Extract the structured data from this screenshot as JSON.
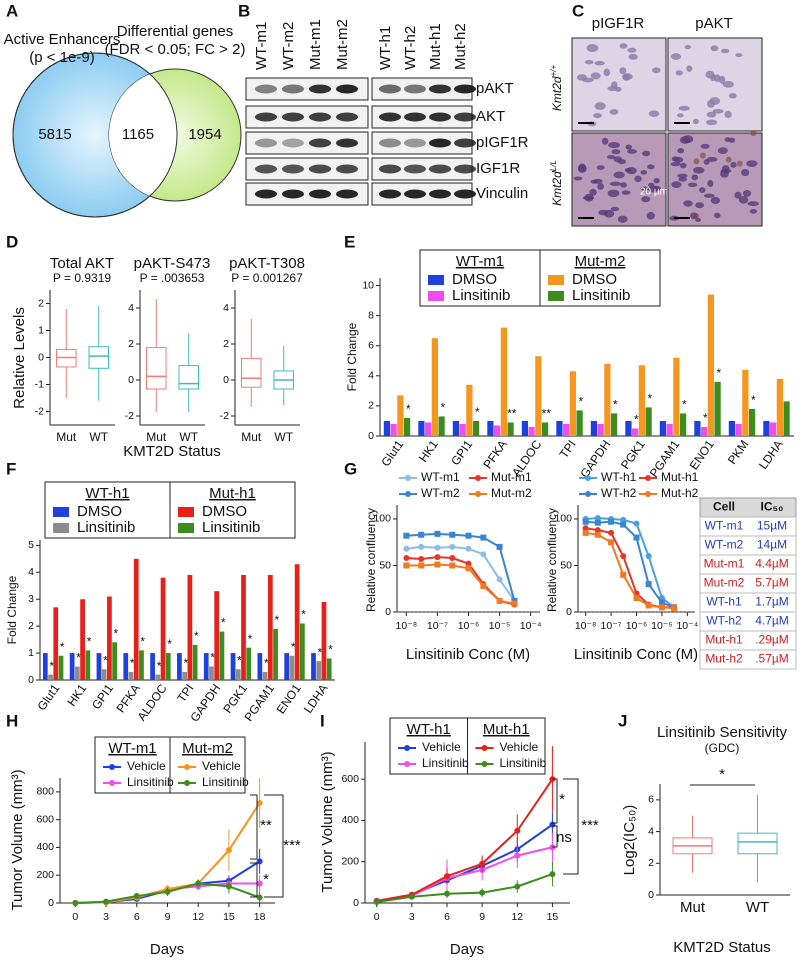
{
  "panel_letters": [
    "A",
    "B",
    "C",
    "D",
    "E",
    "F",
    "G",
    "H",
    "I",
    "J"
  ],
  "venn": {
    "left_title": "Active Enhancers",
    "left_subtitle": "(p < 1e-9)",
    "right_title": "Differential genes",
    "right_subtitle": "(FDR < 0.05; FC > 2)",
    "left_only": 5815,
    "overlap": 1165,
    "right_only": 1954
  },
  "blot": {
    "lanes": [
      "WT-m1",
      "WT-m2",
      "Mut-m1",
      "Mut-m2",
      "WT-h1",
      "WT-h2",
      "Mut-h1",
      "Mut-h2"
    ],
    "rows": [
      "pAKT",
      "AKT",
      "pIGF1R",
      "IGF1R",
      "Vinculin"
    ]
  },
  "ihc": {
    "columns": [
      "pIGF1R",
      "pAKT"
    ],
    "rows": [
      {
        "gene": "Kmt2d",
        "genotype": "+/+"
      },
      {
        "gene": "Kmt2d",
        "genotype": "L/L"
      }
    ],
    "scale_bar": "20 µm"
  },
  "chart_data": [
    {
      "type": "box",
      "title": "Total AKT",
      "subtitle": "P = 0.9319",
      "ylabel": "Relative Levels",
      "categories": [
        "Mut",
        "WT"
      ],
      "colors": [
        "#f07c7c",
        "#3fbcc0"
      ],
      "boxes": [
        {
          "whislo": -1.5,
          "q1": -0.35,
          "med": 0,
          "q3": 0.3,
          "whishi": 1.8
        },
        {
          "whislo": -1.6,
          "q1": -0.4,
          "med": 0.05,
          "q3": 0.4,
          "whishi": 1.9
        }
      ],
      "ylim": [
        -2.5,
        2.5
      ],
      "yticks": [
        -2,
        -1,
        0,
        1,
        2
      ]
    },
    {
      "type": "box",
      "title": "pAKT-S473",
      "subtitle": "P = .003653",
      "xlabel": "KMT2D Status",
      "categories": [
        "Mut",
        "WT"
      ],
      "colors": [
        "#f07c7c",
        "#3fbcc0"
      ],
      "boxes": [
        {
          "whislo": -1.8,
          "q1": -0.5,
          "med": 0.2,
          "q3": 1.8,
          "whishi": 4.5
        },
        {
          "whislo": -1.8,
          "q1": -0.5,
          "med": -0.2,
          "q3": 0.8,
          "whishi": 2.6
        }
      ],
      "ylim": [
        -2.5,
        5
      ],
      "yticks": [
        -2,
        0,
        2,
        4
      ]
    },
    {
      "type": "box",
      "title": "pAKT-T308",
      "subtitle": "P = 0.001267",
      "categories": [
        "Mut",
        "WT"
      ],
      "colors": [
        "#f07c7c",
        "#3fbcc0"
      ],
      "boxes": [
        {
          "whislo": -1.5,
          "q1": -0.4,
          "med": 0.1,
          "q3": 1.2,
          "whishi": 3.4
        },
        {
          "whislo": -1.4,
          "q1": -0.5,
          "med": 0,
          "q3": 0.5,
          "whishi": 1.9
        }
      ],
      "ylim": [
        -2.5,
        5
      ],
      "yticks": [
        -2,
        0,
        2,
        4
      ]
    },
    {
      "type": "bar",
      "ylabel": "Fold Change",
      "legend_groups": [
        "WT-m1",
        "Mut-m2"
      ],
      "categories": [
        "Glut1",
        "HK1",
        "GPI1",
        "PFKA",
        "ALDOC",
        "TPI",
        "GAPDH",
        "PGK1",
        "PGAM1",
        "ENO1",
        "PKM",
        "LDHA"
      ],
      "series": [
        {
          "name": "DMSO",
          "color": "#1f3fe0",
          "values": [
            1,
            1,
            1,
            1,
            1,
            1,
            1,
            1,
            1,
            1,
            1,
            1
          ]
        },
        {
          "name": "Linsitinib",
          "color": "#f04cf0",
          "values": [
            0.8,
            0.9,
            0.8,
            0.7,
            0.6,
            0.8,
            0.8,
            0.5,
            0.8,
            0.6,
            0.8,
            0.9
          ],
          "stars": [
            null,
            null,
            null,
            null,
            null,
            null,
            null,
            "*",
            null,
            "*",
            null,
            null
          ]
        },
        {
          "name": "DMSO",
          "color": "#f5961e",
          "values": [
            2.7,
            6.5,
            3.4,
            7.2,
            5.3,
            4.3,
            4.8,
            4.7,
            5.2,
            9.4,
            4.4,
            3.8
          ]
        },
        {
          "name": "Linsitinib",
          "color": "#3c8c1e",
          "values": [
            1.2,
            1.3,
            1.0,
            0.9,
            0.9,
            1.7,
            1.5,
            1.9,
            1.5,
            3.6,
            1.8,
            2.3
          ],
          "stars": [
            "*",
            "*",
            "*",
            "**",
            "**",
            "*",
            "*",
            "*",
            "*",
            "*",
            "*",
            null
          ]
        }
      ],
      "ylim": [
        0,
        10.5
      ],
      "yticks": [
        0,
        2,
        4,
        6,
        8,
        10
      ]
    },
    {
      "type": "bar",
      "ylabel": "Fold Change",
      "legend_groups": [
        "WT-h1",
        "Mut-h1"
      ],
      "categories": [
        "Glut1",
        "HK1",
        "GPI1",
        "PFKA",
        "ALDOC",
        "TPI",
        "GAPDH",
        "PGK1",
        "PGAM1",
        "ENO1",
        "LDHA"
      ],
      "series": [
        {
          "name": "DMSO",
          "color": "#1f3fe0",
          "values": [
            1,
            1,
            1,
            1,
            1,
            1,
            1,
            1,
            1,
            1,
            1
          ]
        },
        {
          "name": "Linsitinib",
          "color": "#8c8c8c",
          "values": [
            0.2,
            0.5,
            0.4,
            0.3,
            0.2,
            0.3,
            0.5,
            0.4,
            0.3,
            0.9,
            0.7
          ],
          "stars": [
            "*",
            "*",
            "*",
            "*",
            "*",
            "*",
            "*",
            "*",
            "*",
            "*",
            "*"
          ]
        },
        {
          "name": "DMSO",
          "color": "#e8201a",
          "values": [
            2.7,
            3.0,
            3.1,
            4.5,
            3.8,
            3.9,
            3.3,
            3.9,
            3.9,
            4.3,
            2.9
          ]
        },
        {
          "name": "Linsitinib",
          "color": "#3c8c1e",
          "values": [
            0.9,
            1.1,
            1.4,
            1.1,
            1.0,
            1.3,
            1.8,
            1.2,
            1.9,
            2.1,
            0.8
          ],
          "stars": [
            "*",
            "*",
            "*",
            "*",
            "*",
            "*",
            "*",
            "*",
            "*",
            "*",
            "*"
          ]
        }
      ],
      "ylim": [
        0,
        5.2
      ],
      "yticks": [
        0,
        1,
        2,
        3,
        4,
        5
      ]
    },
    {
      "type": "line",
      "xscale": "log",
      "ylabel": "Relative confluency",
      "xlabel": "Linsitinib Conc (M)",
      "zero_line": true,
      "x": [
        1e-08,
        3e-08,
        1e-07,
        3e-07,
        1e-06,
        3e-06,
        1e-05,
        3e-05
      ],
      "series": [
        {
          "name": "WT-m1",
          "color": "#8bbde8",
          "values": [
            68,
            70,
            69,
            70,
            68,
            62,
            35,
            12
          ]
        },
        {
          "name": "WT-m2",
          "color": "#3a84d0",
          "values": [
            82,
            83,
            84,
            83,
            82,
            80,
            70,
            12
          ]
        },
        {
          "name": "Mut-m1",
          "color": "#e8342a",
          "values": [
            58,
            57,
            59,
            58,
            52,
            30,
            12,
            8
          ]
        },
        {
          "name": "Mut-m2",
          "color": "#f07a20",
          "values": [
            50,
            50,
            51,
            50,
            47,
            28,
            12,
            9
          ]
        }
      ],
      "xlim": [
        5e-09,
        0.0002
      ],
      "xticks": [
        {
          "value": 1e-08,
          "label": "10⁻⁸"
        },
        {
          "value": 1e-07,
          "label": "10⁻⁷"
        },
        {
          "value": 1e-06,
          "label": "10⁻⁶"
        },
        {
          "value": 1e-05,
          "label": "10⁻⁵"
        },
        {
          "value": 0.0001,
          "label": "10⁻⁴"
        }
      ],
      "ylim": [
        0,
        115
      ],
      "yticks": [
        0,
        50,
        100
      ]
    },
    {
      "type": "line",
      "xscale": "log",
      "ylabel": "Relative confluency",
      "xlabel": "Linsitinib Conc (M)",
      "zero_line": true,
      "x": [
        1e-08,
        3e-08,
        1e-07,
        3e-07,
        1e-06,
        3e-06,
        1e-05,
        3e-05
      ],
      "series": [
        {
          "name": "WT-h1",
          "color": "#4aa0e0",
          "values": [
            100,
            101,
            100,
            99,
            95,
            60,
            15,
            5
          ]
        },
        {
          "name": "WT-h2",
          "color": "#3a84d0",
          "values": [
            97,
            96,
            97,
            94,
            80,
            30,
            10,
            5
          ]
        },
        {
          "name": "Mut-h1",
          "color": "#e8342a",
          "values": [
            90,
            88,
            85,
            60,
            20,
            8,
            5,
            5
          ]
        },
        {
          "name": "Mut-h2",
          "color": "#f07a20",
          "values": [
            85,
            83,
            75,
            40,
            15,
            7,
            5,
            4
          ]
        }
      ],
      "xlim": [
        5e-09,
        0.0002
      ],
      "xticks": [
        {
          "value": 1e-08,
          "label": "10⁻⁸"
        },
        {
          "value": 1e-07,
          "label": "10⁻⁷"
        },
        {
          "value": 1e-06,
          "label": "10⁻⁶"
        },
        {
          "value": 1e-05,
          "label": "10⁻⁵"
        },
        {
          "value": 0.0001,
          "label": "10⁻⁴"
        }
      ],
      "ylim": [
        0,
        115
      ],
      "yticks": [
        0,
        50,
        100
      ]
    },
    {
      "type": "line",
      "ylabel": "Tumor Volume (mm³)",
      "xlabel": "Days",
      "legend_groups": [
        "WT-m1",
        "Mut-m2"
      ],
      "annotations": [
        "**",
        "*",
        "***"
      ],
      "x": [
        0,
        3,
        6,
        9,
        12,
        15,
        18
      ],
      "series": [
        {
          "name": "Vehicle",
          "color": "#1f3fe0",
          "values": [
            0,
            5,
            30,
            90,
            140,
            160,
            300
          ],
          "errors": [
            0,
            3,
            10,
            20,
            20,
            40,
            90
          ]
        },
        {
          "name": "Linsitinib",
          "color": "#f04cf0",
          "values": [
            0,
            5,
            40,
            100,
            120,
            140,
            140
          ],
          "errors": [
            0,
            3,
            15,
            20,
            25,
            40,
            60
          ]
        },
        {
          "name": "Vehicle",
          "color": "#f5961e",
          "values": [
            0,
            5,
            40,
            100,
            140,
            380,
            720
          ],
          "errors": [
            0,
            3,
            15,
            30,
            30,
            150,
            180
          ]
        },
        {
          "name": "Linsitinib",
          "color": "#3c8c1e",
          "values": [
            0,
            10,
            50,
            80,
            140,
            120,
            40
          ],
          "errors": [
            0,
            5,
            20,
            30,
            30,
            50,
            40
          ]
        }
      ],
      "xlim": [
        -1.5,
        19.5
      ],
      "xticks": [
        0,
        3,
        6,
        9,
        12,
        15,
        18
      ],
      "ylim": [
        0,
        900
      ],
      "yticks": [
        0,
        200,
        400,
        600,
        800
      ]
    },
    {
      "type": "line",
      "ylabel": "Tumor Volume (mm³)",
      "xlabel": "Days",
      "legend_groups": [
        "WT-h1",
        "Mut-h1"
      ],
      "annotations": [
        "*",
        "ns",
        "***"
      ],
      "x": [
        0,
        3,
        6,
        9,
        12,
        15
      ],
      "series": [
        {
          "name": "Vehicle",
          "color": "#1f3fe0",
          "values": [
            10,
            40,
            110,
            180,
            260,
            380
          ],
          "errors": [
            5,
            10,
            30,
            40,
            60,
            60
          ]
        },
        {
          "name": "Linsitinib",
          "color": "#f04cf0",
          "values": [
            10,
            35,
            120,
            160,
            230,
            270
          ],
          "errors": [
            5,
            10,
            90,
            50,
            60,
            70
          ]
        },
        {
          "name": "Vehicle",
          "color": "#e8201a",
          "values": [
            10,
            40,
            130,
            190,
            350,
            600
          ],
          "errors": [
            5,
            10,
            40,
            40,
            80,
            160
          ]
        },
        {
          "name": "Linsitinib",
          "color": "#3c8c1e",
          "values": [
            5,
            30,
            45,
            50,
            80,
            140
          ],
          "errors": [
            3,
            10,
            20,
            20,
            30,
            60
          ]
        }
      ],
      "xlim": [
        -1,
        16.5
      ],
      "xticks": [
        0,
        3,
        6,
        9,
        12,
        15
      ],
      "ylim": [
        0,
        780
      ],
      "yticks": [
        0,
        200,
        400,
        600
      ]
    },
    {
      "type": "box",
      "title": "Linsitinib Sensitivity",
      "subtitle": "(GDC)",
      "ylabel": "Log2(IC₅₀)",
      "xlabel": "KMT2D Status",
      "annotations": [
        "*"
      ],
      "categories": [
        "Mut",
        "WT"
      ],
      "colors": [
        "#f07c7c",
        "#3fbcc0"
      ],
      "boxes": [
        {
          "whislo": 1.4,
          "q1": 2.6,
          "med": 3.1,
          "q3": 3.6,
          "whishi": 5
        },
        {
          "whislo": 0.8,
          "q1": 2.6,
          "med": 3.35,
          "q3": 3.9,
          "whishi": 6.3
        }
      ],
      "ylim": [
        0,
        7
      ],
      "yticks": [
        0,
        2,
        4,
        6
      ]
    }
  ],
  "ic50_table": {
    "header": [
      "Cell",
      "IC₅₀"
    ],
    "row_colors": [
      "#2040c0",
      "#2040c0",
      "#d02020",
      "#d02020",
      "#2040c0",
      "#2040c0",
      "#d02020",
      "#d02020"
    ],
    "rows": [
      [
        "WT-m1",
        "15µM"
      ],
      [
        "WT-m2",
        "14µM"
      ],
      [
        "Mut-m1",
        "4.4µM"
      ],
      [
        "Mut-m2",
        "5.7µM"
      ],
      [
        "WT-h1",
        "1.7µM"
      ],
      [
        "WT-h2",
        "4.7µM"
      ],
      [
        "Mut-h1",
        ".29µM"
      ],
      [
        "Mut-h2",
        ".57µM"
      ]
    ]
  }
}
